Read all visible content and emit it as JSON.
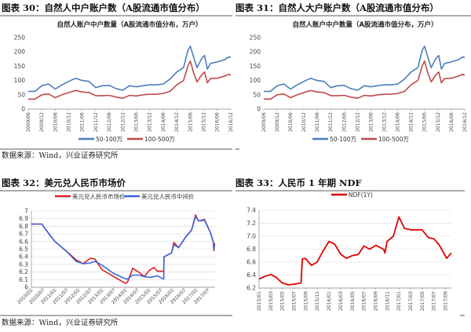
{
  "source_text": "数据来源：Wind，兴业证券研究所",
  "chart_data": [
    {
      "id": "c30",
      "type": "line",
      "title": "图表 30：自然人中户账户数（A股流通市值分布）",
      "subtitle": "自然人账户中户数量（A股流通市值分布，万户）",
      "ylim": [
        0,
        250
      ],
      "yticks": [
        0,
        50,
        100,
        150,
        200,
        250
      ],
      "xlim": [
        2009.42,
        2016.92
      ],
      "xticks": [
        "2009/06",
        "2009/12",
        "2010/06",
        "2010/12",
        "2011/06",
        "2011/12",
        "2012/06",
        "2012/12",
        "2013/06",
        "2013/12",
        "2014/06",
        "2014/12",
        "2015/06",
        "2015/12",
        "2016/06",
        "2016/12"
      ],
      "grid": false,
      "legend": "bottom",
      "series": [
        {
          "name": "50-100万",
          "color": "#4a7ebb",
          "x": [
            2009.42,
            2009.67,
            2009.92,
            2010.17,
            2010.42,
            2010.67,
            2010.92,
            2011.17,
            2011.42,
            2011.67,
            2011.92,
            2012.17,
            2012.42,
            2012.67,
            2012.92,
            2013.17,
            2013.42,
            2013.67,
            2013.92,
            2014.17,
            2014.42,
            2014.67,
            2014.92,
            2015.17,
            2015.33,
            2015.42,
            2015.55,
            2015.67,
            2015.83,
            2015.95,
            2016.05,
            2016.17,
            2016.42,
            2016.67,
            2016.85,
            2016.92
          ],
          "values": [
            62,
            62,
            82,
            88,
            70,
            85,
            97,
            108,
            100,
            97,
            75,
            82,
            83,
            72,
            66,
            82,
            78,
            82,
            85,
            85,
            88,
            105,
            130,
            145,
            205,
            220,
            180,
            145,
            175,
            188,
            140,
            160,
            165,
            172,
            183,
            180
          ]
        },
        {
          "name": "100-500万",
          "color": "#be4b48",
          "x": [
            2009.42,
            2009.67,
            2009.92,
            2010.17,
            2010.42,
            2010.67,
            2010.92,
            2011.17,
            2011.42,
            2011.67,
            2011.92,
            2012.17,
            2012.42,
            2012.67,
            2012.92,
            2013.17,
            2013.42,
            2013.67,
            2013.92,
            2014.17,
            2014.42,
            2014.67,
            2014.92,
            2015.17,
            2015.33,
            2015.42,
            2015.55,
            2015.67,
            2015.83,
            2015.95,
            2016.05,
            2016.17,
            2016.42,
            2016.67,
            2016.85,
            2016.92
          ],
          "values": [
            35,
            35,
            50,
            53,
            40,
            50,
            58,
            65,
            60,
            58,
            47,
            47,
            48,
            42,
            38,
            48,
            46,
            50,
            52,
            52,
            55,
            62,
            85,
            100,
            150,
            168,
            125,
            95,
            118,
            130,
            92,
            107,
            108,
            115,
            122,
            118
          ]
        }
      ]
    },
    {
      "id": "c31",
      "type": "line",
      "title": "图表 31：自然人大户账户数（A股流通市值分布）",
      "subtitle": "自然人账户中户数量（A股流通市值分布，万户）",
      "ylim": [
        0,
        250
      ],
      "yticks": [
        0,
        50,
        100,
        150,
        200,
        250
      ],
      "xlim": [
        2009.42,
        2016.92
      ],
      "xticks": [
        "2009/06",
        "2009/12",
        "2010/06",
        "2010/12",
        "2011/06",
        "2011/12",
        "2012/06",
        "2012/12",
        "2013/06",
        "2013/12",
        "2014/06",
        "2014/12",
        "2015/06",
        "2015/12",
        "2016/06",
        "2016/12"
      ],
      "grid": false,
      "legend": "bottom",
      "series": [
        {
          "name": "50-100万",
          "color": "#4a7ebb",
          "x": [
            2009.42,
            2009.67,
            2009.92,
            2010.17,
            2010.42,
            2010.67,
            2010.92,
            2011.17,
            2011.42,
            2011.67,
            2011.92,
            2012.17,
            2012.42,
            2012.67,
            2012.92,
            2013.17,
            2013.42,
            2013.67,
            2013.92,
            2014.17,
            2014.42,
            2014.67,
            2014.92,
            2015.17,
            2015.33,
            2015.42,
            2015.55,
            2015.67,
            2015.83,
            2015.95,
            2016.05,
            2016.17,
            2016.42,
            2016.67,
            2016.85,
            2016.92
          ],
          "values": [
            62,
            62,
            82,
            88,
            70,
            85,
            97,
            108,
            100,
            97,
            75,
            82,
            83,
            72,
            66,
            82,
            78,
            82,
            85,
            85,
            88,
            105,
            130,
            145,
            205,
            220,
            180,
            145,
            175,
            188,
            140,
            160,
            165,
            172,
            183,
            180
          ]
        },
        {
          "name": "100-500万",
          "color": "#be4b48",
          "x": [
            2009.42,
            2009.67,
            2009.92,
            2010.17,
            2010.42,
            2010.67,
            2010.92,
            2011.17,
            2011.42,
            2011.67,
            2011.92,
            2012.17,
            2012.42,
            2012.67,
            2012.92,
            2013.17,
            2013.42,
            2013.67,
            2013.92,
            2014.17,
            2014.42,
            2014.67,
            2014.92,
            2015.17,
            2015.33,
            2015.42,
            2015.55,
            2015.67,
            2015.83,
            2015.95,
            2016.05,
            2016.17,
            2016.42,
            2016.67,
            2016.85,
            2016.92
          ],
          "values": [
            35,
            35,
            50,
            53,
            40,
            50,
            58,
            65,
            60,
            58,
            47,
            47,
            48,
            42,
            38,
            48,
            46,
            50,
            52,
            52,
            55,
            62,
            85,
            100,
            150,
            168,
            125,
            95,
            118,
            130,
            92,
            107,
            108,
            115,
            122,
            118
          ]
        }
      ]
    },
    {
      "id": "c32",
      "type": "line",
      "title": "图表 32：美元兑人民币市场价",
      "ylim": [
        6,
        7
      ],
      "yticks": [
        6,
        6.1,
        6.2,
        6.3,
        6.4,
        6.5,
        6.6,
        6.7,
        6.8,
        6.9,
        7
      ],
      "xlim": [
        2010.0,
        2017.8
      ],
      "xticks": [
        "2010/01",
        "2010/07",
        "2011/01",
        "2011/07",
        "2012/01",
        "2012/07",
        "2013/01",
        "2013/07",
        "2014/01",
        "2014/07",
        "2015/01",
        "2015/07",
        "2016/01",
        "2016/07",
        "2017/01",
        "2017/07"
      ],
      "grid": true,
      "legend": "top",
      "series": [
        {
          "name": "美元兑人民币市场价",
          "color": "#e02020",
          "x": [
            2010.0,
            2010.45,
            2010.55,
            2010.8,
            2011.0,
            2011.5,
            2011.9,
            2012.2,
            2012.5,
            2012.7,
            2013.0,
            2013.5,
            2014.0,
            2014.1,
            2014.3,
            2014.55,
            2014.8,
            2015.0,
            2015.2,
            2015.35,
            2015.6,
            2015.62,
            2015.63,
            2015.95,
            2016.05,
            2016.25,
            2016.55,
            2016.8,
            2016.97,
            2017.1,
            2017.35,
            2017.6,
            2017.72,
            2017.75,
            2017.78
          ],
          "values": [
            6.83,
            6.83,
            6.78,
            6.68,
            6.6,
            6.47,
            6.36,
            6.31,
            6.38,
            6.37,
            6.23,
            6.14,
            6.05,
            6.08,
            6.25,
            6.2,
            6.14,
            6.22,
            6.26,
            6.21,
            6.21,
            6.21,
            6.4,
            6.45,
            6.59,
            6.52,
            6.66,
            6.75,
            6.95,
            6.87,
            6.89,
            6.72,
            6.6,
            6.48,
            6.58
          ]
        },
        {
          "name": "美元兑人民币中间价",
          "color": "#3a66dd",
          "x": [
            2010.0,
            2010.45,
            2010.55,
            2010.8,
            2011.0,
            2011.5,
            2011.9,
            2012.2,
            2012.5,
            2012.7,
            2013.0,
            2013.5,
            2014.0,
            2014.1,
            2014.3,
            2014.55,
            2014.8,
            2015.0,
            2015.2,
            2015.35,
            2015.6,
            2015.62,
            2015.63,
            2015.95,
            2016.05,
            2016.25,
            2016.55,
            2016.8,
            2016.97,
            2017.1,
            2017.35,
            2017.6,
            2017.72,
            2017.75,
            2017.78
          ],
          "values": [
            6.83,
            6.83,
            6.78,
            6.68,
            6.6,
            6.47,
            6.34,
            6.31,
            6.32,
            6.34,
            6.29,
            6.18,
            6.11,
            6.11,
            6.16,
            6.16,
            6.14,
            6.13,
            6.14,
            6.15,
            6.11,
            6.11,
            6.4,
            6.45,
            6.56,
            6.52,
            6.66,
            6.75,
            6.93,
            6.87,
            6.88,
            6.72,
            6.6,
            6.5,
            6.56
          ]
        }
      ]
    },
    {
      "id": "c33",
      "type": "line",
      "title": "图表 33：人民币 1 年期 NDF",
      "ylim": [
        6.2,
        7.4
      ],
      "yticks": [
        "6.2",
        "6.4",
        "6.6",
        "6.8",
        "7.0",
        "7.2",
        "7.4"
      ],
      "xlim": [
        2015.0,
        2017.75
      ],
      "xticks": [
        "2015/01",
        "2015/03",
        "2015/05",
        "2015/07",
        "2015/09",
        "2015/11",
        "2016/01",
        "2016/03",
        "2016/05",
        "2016/07",
        "2016/09",
        "2016/11",
        "2017/01",
        "2017/03",
        "2017/05",
        "2017/07",
        "2017/09"
      ],
      "grid": true,
      "legend": "top",
      "series": [
        {
          "name": "NDF(1Y)",
          "color": "#e00000",
          "x": [
            2015.0,
            2015.08,
            2015.17,
            2015.25,
            2015.33,
            2015.42,
            2015.5,
            2015.6,
            2015.62,
            2015.66,
            2015.75,
            2015.83,
            2015.92,
            2016.0,
            2016.08,
            2016.17,
            2016.25,
            2016.33,
            2016.42,
            2016.5,
            2016.58,
            2016.67,
            2016.78,
            2016.8,
            2016.83,
            2016.92,
            2017.0,
            2017.08,
            2017.17,
            2017.25,
            2017.33,
            2017.42,
            2017.5,
            2017.58,
            2017.68,
            2017.75
          ],
          "values": [
            6.34,
            6.38,
            6.41,
            6.36,
            6.28,
            6.25,
            6.26,
            6.28,
            6.65,
            6.66,
            6.55,
            6.6,
            6.78,
            6.92,
            6.88,
            6.72,
            6.66,
            6.7,
            6.72,
            6.85,
            6.8,
            6.86,
            6.8,
            6.74,
            6.92,
            7.0,
            7.3,
            7.12,
            7.1,
            7.1,
            7.1,
            6.98,
            6.96,
            6.86,
            6.66,
            6.74
          ]
        }
      ]
    }
  ]
}
